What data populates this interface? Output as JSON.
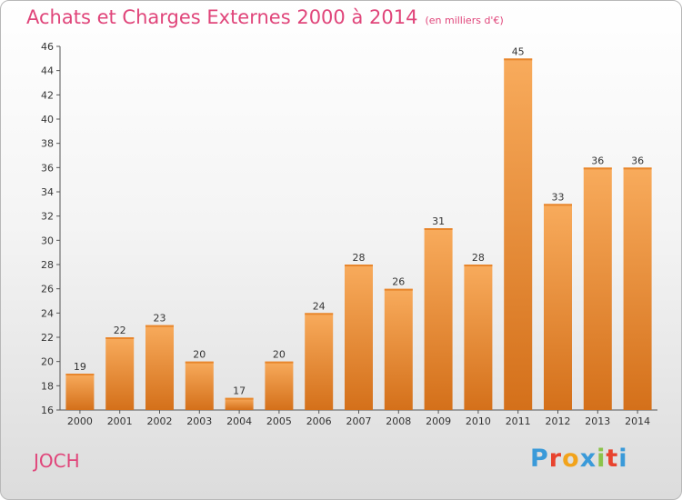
{
  "header": {
    "title": "Achats et Charges Externes 2000 à 2014",
    "subtitle": "(en milliers d'€)"
  },
  "footer": {
    "town": "JOCH",
    "brand": "Proxiti",
    "brand_colors": [
      "#3a9ad9",
      "#e8432e",
      "#f2a31b",
      "#3a9ad9",
      "#8bc34a",
      "#e8432e",
      "#3a9ad9"
    ]
  },
  "colors": {
    "bar_light": "#f7a85a",
    "bar_dark": "#d9731c",
    "title": "#e0457a"
  },
  "chart_data": {
    "type": "bar",
    "title": "Achats et Charges Externes 2000 à 2014",
    "subtitle": "(en milliers d'€)",
    "xlabel": "",
    "ylabel": "",
    "categories": [
      "2000",
      "2001",
      "2002",
      "2003",
      "2004",
      "2005",
      "2006",
      "2007",
      "2008",
      "2009",
      "2010",
      "2011",
      "2012",
      "2013",
      "2014"
    ],
    "values": [
      19,
      22,
      23,
      20,
      17,
      20,
      24,
      28,
      26,
      31,
      28,
      45,
      33,
      36,
      36
    ],
    "ylim": [
      16,
      46
    ],
    "yticks": [
      16,
      18,
      20,
      22,
      24,
      26,
      28,
      30,
      32,
      34,
      36,
      38,
      40,
      42,
      44,
      46
    ],
    "grid": false,
    "legend": "none"
  }
}
